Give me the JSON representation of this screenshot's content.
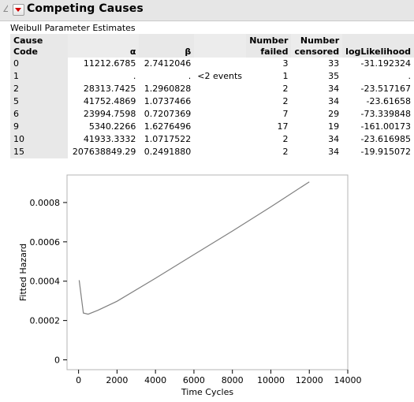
{
  "header": {
    "title": "Competing Causes"
  },
  "table": {
    "title": "Weibull Parameter Estimates",
    "columns": {
      "cause": "Cause Code",
      "alpha": "α",
      "beta": "β",
      "note": "",
      "failed_line1": "Number",
      "failed_line2": "failed",
      "censored_line1": "Number",
      "censored_line2": "censored",
      "loglik": "logLikelihood"
    },
    "rows": [
      {
        "cause": "0",
        "alpha": "11212.6785",
        "beta": "2.7412046",
        "note": "",
        "failed": "3",
        "censored": "33",
        "loglik": "-31.192324"
      },
      {
        "cause": "1",
        "alpha": ".",
        "beta": ".",
        "note": "<2 events",
        "failed": "1",
        "censored": "35",
        "loglik": "."
      },
      {
        "cause": "2",
        "alpha": "28313.7425",
        "beta": "1.2960828",
        "note": "",
        "failed": "2",
        "censored": "34",
        "loglik": "-23.517167"
      },
      {
        "cause": "5",
        "alpha": "41752.4869",
        "beta": "1.0737466",
        "note": "",
        "failed": "2",
        "censored": "34",
        "loglik": "-23.61658"
      },
      {
        "cause": "6",
        "alpha": "23994.7598",
        "beta": "0.7207369",
        "note": "",
        "failed": "7",
        "censored": "29",
        "loglik": "-73.339848"
      },
      {
        "cause": "9",
        "alpha": "5340.2266",
        "beta": "1.6276496",
        "note": "",
        "failed": "17",
        "censored": "19",
        "loglik": "-161.00173"
      },
      {
        "cause": "10",
        "alpha": "41933.3332",
        "beta": "1.0717522",
        "note": "",
        "failed": "2",
        "censored": "34",
        "loglik": "-23.616985"
      },
      {
        "cause": "15",
        "alpha": "207638849.29",
        "beta": "0.2491880",
        "note": "",
        "failed": "2",
        "censored": "34",
        "loglik": "-19.915072"
      }
    ]
  },
  "chart_data": {
    "type": "line",
    "title": "",
    "xlabel": "Time Cycles",
    "ylabel": "Fitted Hazard",
    "xlim": [
      -600,
      14000
    ],
    "ylim": [
      -5e-05,
      0.00094
    ],
    "xticks": [
      0,
      2000,
      4000,
      6000,
      8000,
      10000,
      12000,
      14000
    ],
    "yticks": [
      0,
      0.0002,
      0.0004,
      0.0006,
      0.0008
    ],
    "ytick_labels": [
      "0",
      "0.0002",
      "0.0004",
      "0.0006",
      "0.0008"
    ],
    "grid": false,
    "series": [
      {
        "color": "#7f7f7f",
        "x": [
          30,
          250,
          500,
          1000,
          2000,
          4000,
          6000,
          8000,
          10000,
          12000
        ],
        "y": [
          0.000405,
          0.000238,
          0.000232,
          0.000252,
          0.000298,
          0.000415,
          0.000535,
          0.000655,
          0.000778,
          0.000905
        ]
      }
    ]
  }
}
